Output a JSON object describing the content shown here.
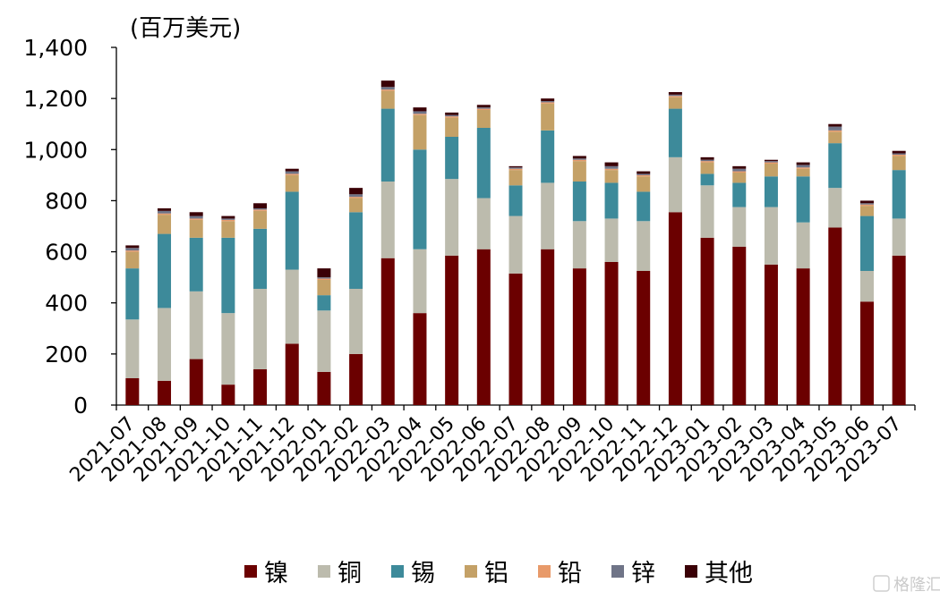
{
  "chart_data": {
    "type": "bar",
    "stacked": true,
    "unit_label": "(百万美元)",
    "ylim": [
      0,
      1400
    ],
    "yticks": [
      "0",
      "200",
      "400",
      "600",
      "800",
      "1,000",
      "1,200",
      "1,400"
    ],
    "ytick_values": [
      0,
      200,
      400,
      600,
      800,
      1000,
      1200,
      1400
    ],
    "grid": false,
    "legend_position": "bottom",
    "categories": [
      "2021-07",
      "2021-08",
      "2021-09",
      "2021-10",
      "2021-11",
      "2021-12",
      "2022-01",
      "2022-02",
      "2022-03",
      "2022-04",
      "2022-05",
      "2022-06",
      "2022-07",
      "2022-08",
      "2022-09",
      "2022-10",
      "2022-11",
      "2022-12",
      "2023-01",
      "2023-02",
      "2023-03",
      "2023-04",
      "2023-05",
      "2023-06",
      "2023-07"
    ],
    "series": [
      {
        "name": "镍",
        "color": "#6b0000",
        "values": [
          105,
          95,
          180,
          80,
          140,
          240,
          130,
          200,
          575,
          360,
          585,
          610,
          515,
          610,
          535,
          560,
          525,
          755,
          655,
          620,
          550,
          535,
          695,
          405,
          585
        ]
      },
      {
        "name": "铜",
        "color": "#bcbbad",
        "values": [
          230,
          285,
          265,
          280,
          315,
          290,
          240,
          255,
          300,
          250,
          300,
          200,
          225,
          260,
          185,
          170,
          195,
          215,
          205,
          155,
          225,
          180,
          155,
          120,
          145
        ]
      },
      {
        "name": "锡",
        "color": "#3d8a9a",
        "values": [
          200,
          290,
          210,
          295,
          235,
          305,
          60,
          300,
          285,
          390,
          165,
          275,
          120,
          205,
          155,
          140,
          115,
          190,
          45,
          95,
          120,
          180,
          175,
          215,
          190
        ]
      },
      {
        "name": "铝",
        "color": "#c4a167",
        "values": [
          65,
          75,
          70,
          65,
          70,
          65,
          60,
          55,
          70,
          135,
          75,
          70,
          60,
          105,
          80,
          50,
          60,
          45,
          45,
          40,
          50,
          30,
          45,
          40,
          55
        ]
      },
      {
        "name": "铅",
        "color": "#e89a6a",
        "values": [
          5,
          5,
          5,
          5,
          5,
          5,
          5,
          5,
          5,
          5,
          5,
          5,
          5,
          5,
          5,
          5,
          5,
          5,
          5,
          5,
          5,
          5,
          5,
          5,
          5
        ]
      },
      {
        "name": "锌",
        "color": "#6f7487",
        "values": [
          10,
          10,
          10,
          5,
          5,
          10,
          5,
          10,
          10,
          10,
          5,
          5,
          5,
          5,
          5,
          10,
          5,
          5,
          5,
          10,
          5,
          10,
          15,
          5,
          5
        ]
      },
      {
        "name": "其他",
        "color": "#3a0006",
        "values": [
          10,
          10,
          15,
          10,
          20,
          10,
          35,
          25,
          25,
          15,
          10,
          10,
          5,
          10,
          10,
          15,
          10,
          10,
          10,
          10,
          5,
          10,
          10,
          10,
          10
        ]
      }
    ]
  },
  "watermark": {
    "text": "格隆汇"
  }
}
